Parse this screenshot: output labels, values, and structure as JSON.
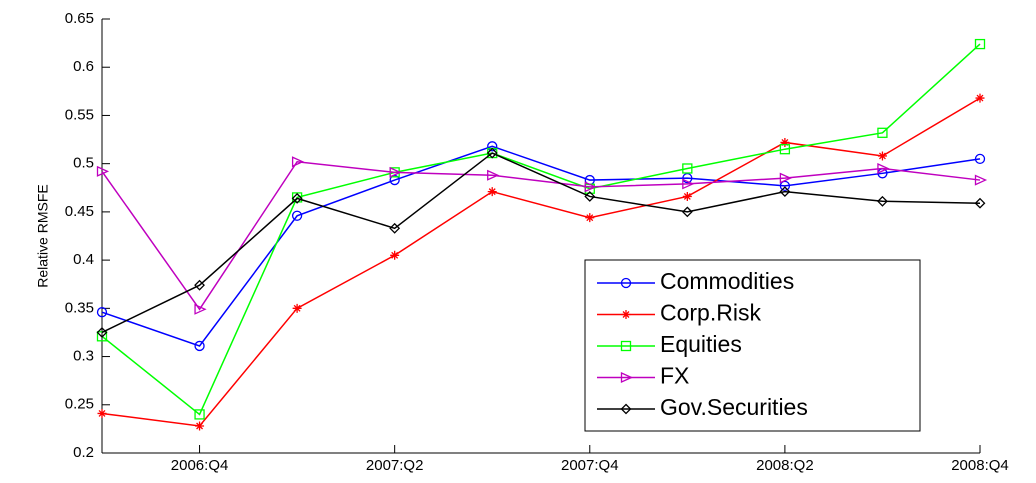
{
  "chart_data": {
    "type": "line",
    "y_label": "Relative RMSFE",
    "categories": [
      null,
      "2006:Q4",
      null,
      "2007:Q2",
      null,
      "2007:Q4",
      null,
      "2008:Q2",
      null,
      "2008:Q4"
    ],
    "ylim": [
      0.2,
      0.65
    ],
    "yticks": [
      0.2,
      0.25,
      0.3,
      0.35,
      0.4,
      0.45,
      0.5,
      0.55,
      0.6,
      0.65
    ],
    "legend": "lower right",
    "series": [
      {
        "name": "Commodities",
        "color": "#0000ff",
        "marker": "circle",
        "values": [
          0.346,
          0.311,
          0.446,
          0.483,
          0.518,
          0.483,
          0.485,
          0.477,
          0.49,
          0.505
        ]
      },
      {
        "name": "Corp.Risk",
        "color": "#ff0000",
        "marker": "star",
        "values": [
          0.241,
          0.228,
          0.35,
          0.405,
          0.471,
          0.444,
          0.466,
          0.522,
          0.508,
          0.568
        ]
      },
      {
        "name": "Equities",
        "color": "#00ff00",
        "marker": "square",
        "values": [
          0.321,
          0.24,
          0.465,
          0.491,
          0.511,
          0.474,
          0.495,
          0.515,
          0.532,
          0.624
        ]
      },
      {
        "name": "FX",
        "color": "#bf00bf",
        "marker": "triangle-right",
        "values": [
          0.492,
          0.349,
          0.502,
          0.491,
          0.488,
          0.476,
          0.479,
          0.485,
          0.495,
          0.483
        ]
      },
      {
        "name": "Gov.Securities",
        "color": "#000000",
        "marker": "diamond",
        "values": [
          0.325,
          0.374,
          0.464,
          0.433,
          0.511,
          0.466,
          0.45,
          0.471,
          0.461,
          0.459
        ]
      }
    ]
  }
}
